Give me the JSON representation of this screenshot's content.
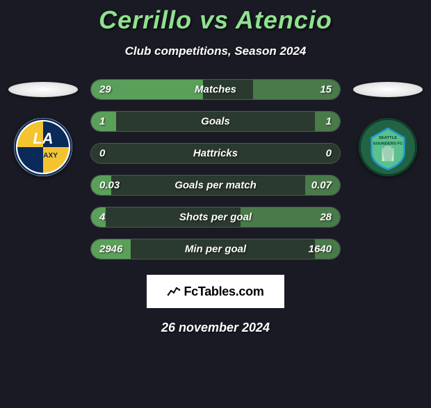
{
  "title": "Cerrillo vs Atencio",
  "title_color": "#8fe28f",
  "subtitle": "Club competitions, Season 2024",
  "date_text": "26 november 2024",
  "background_color": "#1a1a24",
  "left_team": {
    "name": "LA Galaxy"
  },
  "right_team": {
    "name": "Seattle Sounders FC"
  },
  "row_track_color": "#2a3a2f",
  "bar_left_color": "#5aa05a",
  "bar_right_color": "#4a7a4a",
  "rows": [
    {
      "label": "Matches",
      "left_val": "29",
      "right_val": "15",
      "left_pct": 45,
      "right_pct": 35
    },
    {
      "label": "Goals",
      "left_val": "1",
      "right_val": "1",
      "left_pct": 10,
      "right_pct": 10
    },
    {
      "label": "Hattricks",
      "left_val": "0",
      "right_val": "0",
      "left_pct": 0,
      "right_pct": 0
    },
    {
      "label": "Goals per match",
      "left_val": "0.03",
      "right_val": "0.07",
      "left_pct": 8,
      "right_pct": 14
    },
    {
      "label": "Shots per goal",
      "left_val": "4",
      "right_val": "28",
      "left_pct": 6,
      "right_pct": 40
    },
    {
      "label": "Min per goal",
      "left_val": "2946",
      "right_val": "1640",
      "left_pct": 16,
      "right_pct": 10
    }
  ],
  "attribution_text": "FcTables.com"
}
